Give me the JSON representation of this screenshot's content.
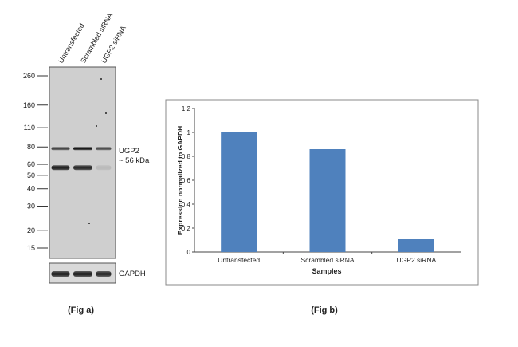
{
  "chart_data": [
    {
      "type": "western-blot",
      "lane_labels": [
        "Untransfected",
        "Scrambled siRNA",
        "UGP2 siRNA"
      ],
      "mw_markers": [
        260,
        160,
        110,
        80,
        60,
        50,
        40,
        30,
        20,
        15
      ],
      "band_label_line1": "UGP2",
      "band_label_line2": "~ 56 kDa",
      "loading_control_label": "GAPDH",
      "caption": "(Fig a)",
      "ugp2_band_intensity": [
        1.0,
        0.95,
        0.12
      ],
      "band_80_intensity": [
        0.75,
        1.0,
        0.7
      ],
      "gapdh_band_intensity": [
        1.0,
        1.0,
        0.95
      ]
    },
    {
      "type": "bar",
      "categories": [
        "Untransfected",
        "Scrambled siRNA",
        "UGP2  siRNA"
      ],
      "values": [
        1.0,
        0.86,
        0.11
      ],
      "xlabel": "Samples",
      "ylabel": "Expression normalized to GAPDH",
      "ylim": [
        0,
        1.2
      ],
      "yticks": [
        "0",
        "0.2",
        "0.4",
        "0.6",
        "0.8",
        "1",
        "1.2"
      ],
      "bar_color": "#4f81bd",
      "grid": false,
      "caption": "(Fig b)"
    }
  ]
}
